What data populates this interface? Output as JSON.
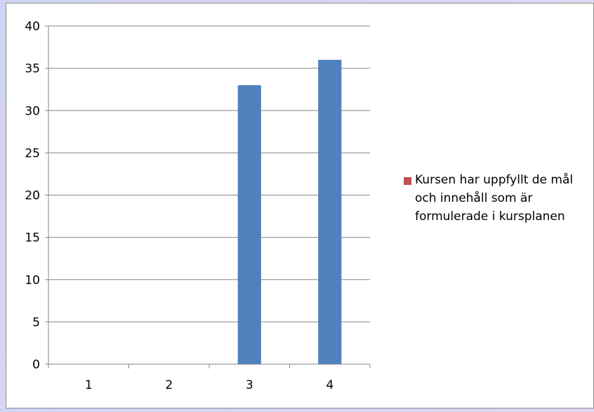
{
  "chart_data": {
    "type": "bar",
    "categories": [
      "1",
      "2",
      "3",
      "4"
    ],
    "series": [
      {
        "name": "Kursen har uppfyllt de mål och innehåll som är formulerade i kursplanen",
        "values": [
          0,
          0,
          33,
          36
        ],
        "color": "#4f81bd"
      }
    ],
    "legend_color": "#c0504d",
    "ylim": [
      0,
      40
    ],
    "yticks": [
      0,
      5,
      10,
      15,
      20,
      25,
      30,
      35,
      40
    ],
    "grid": true,
    "legend_position": "right"
  }
}
